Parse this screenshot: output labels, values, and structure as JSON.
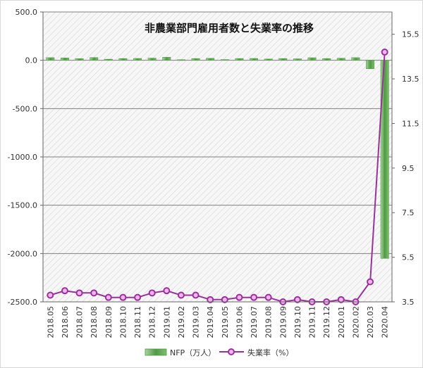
{
  "chart_data": {
    "type": "bar+line",
    "title": "非農業部門雇用者数と失業率の推移",
    "categories": [
      "2018.05",
      "2018.06",
      "2018.07",
      "2018.08",
      "2018.09",
      "2018.10",
      "2018.11",
      "2018.12",
      "2019.01",
      "2019.02",
      "2019.03",
      "2019.04",
      "2019.05",
      "2019.06",
      "2019.07",
      "2019.08",
      "2019.09",
      "2019.10",
      "2019.11",
      "2019.12",
      "2020.01",
      "2020.02",
      "2020.03",
      "2020.04"
    ],
    "series": [
      {
        "name": "NFP（万人）",
        "type": "bar",
        "axis": "left",
        "values": [
          27,
          24,
          17,
          28,
          11,
          18,
          19,
          22,
          31,
          6,
          18,
          20,
          7,
          18,
          19,
          13,
          18,
          15,
          26,
          18,
          21,
          27,
          -87,
          -2050
        ]
      },
      {
        "name": "失業率（%）",
        "type": "line",
        "axis": "right",
        "values": [
          3.8,
          4.0,
          3.9,
          3.9,
          3.7,
          3.7,
          3.7,
          3.9,
          4.0,
          3.8,
          3.8,
          3.6,
          3.6,
          3.7,
          3.7,
          3.7,
          3.5,
          3.6,
          3.5,
          3.5,
          3.6,
          3.5,
          4.4,
          14.7
        ]
      }
    ],
    "y_left": {
      "min": -2500,
      "max": 500,
      "ticks": [
        "500.0",
        "0.0",
        "-500.0",
        "-1000.0",
        "-1500.0",
        "-2000.0",
        "-2500.0"
      ]
    },
    "y_right": {
      "min": 3.5,
      "max": 16.5,
      "ticks": [
        "15.5",
        "13.5",
        "11.5",
        "9.5",
        "7.5",
        "5.5",
        "3.5"
      ]
    },
    "grid": true,
    "legend_position": "bottom",
    "colors": {
      "bar": "#5aa84e",
      "bar_light": "#a9d49c",
      "line": "#993399",
      "marker_fill": "#f2b4ee",
      "grid": "#7f7f7f",
      "hatch": "#d0d0d0"
    }
  }
}
